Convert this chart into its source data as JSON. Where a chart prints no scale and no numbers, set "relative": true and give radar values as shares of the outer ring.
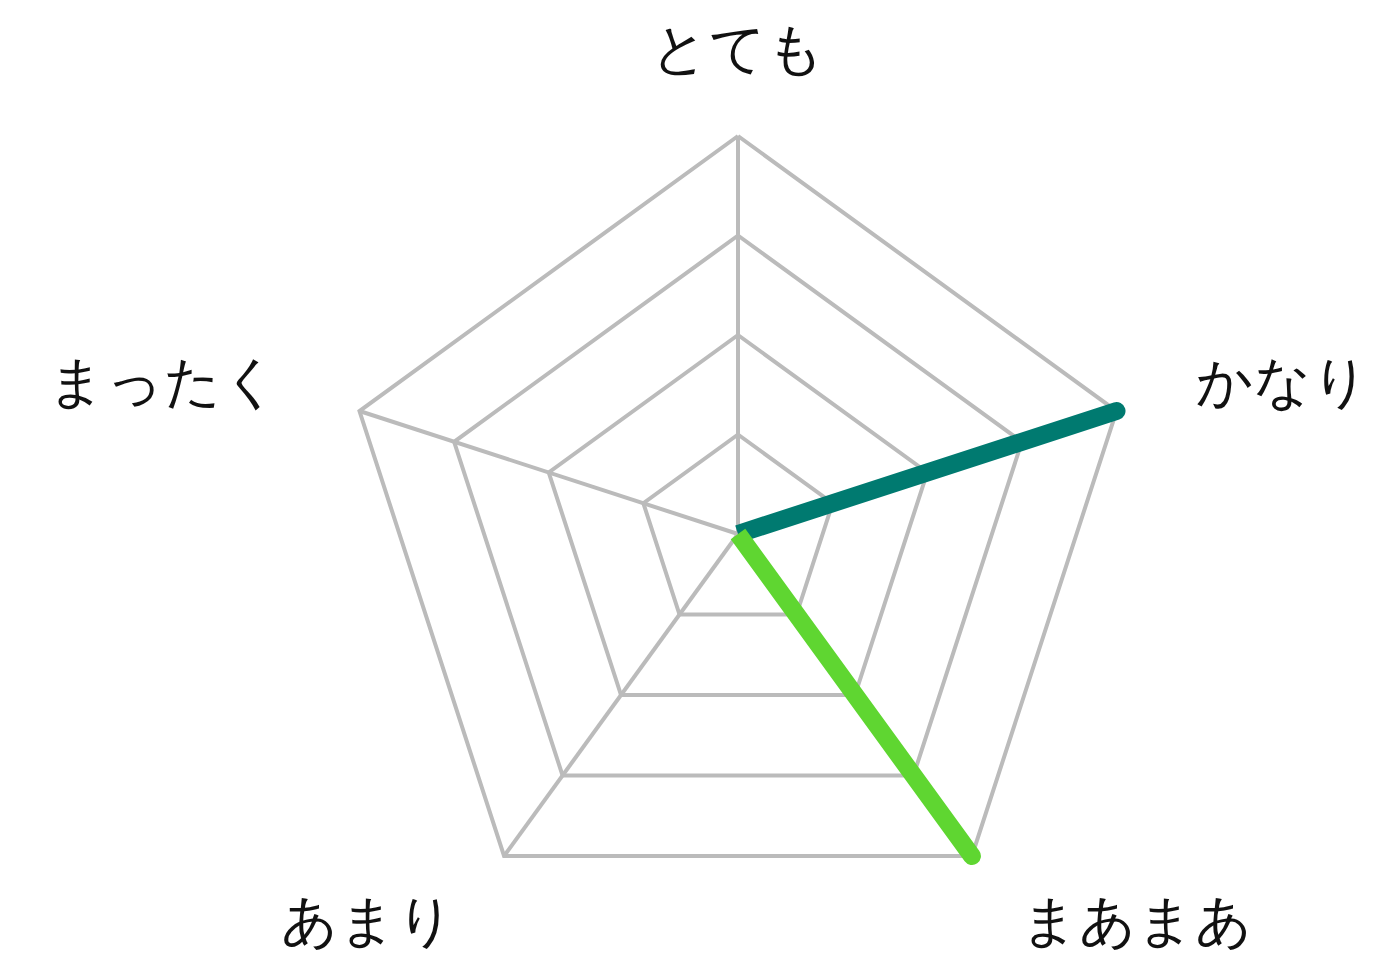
{
  "chart_data": {
    "type": "radar",
    "relative": true,
    "grid": true,
    "categories": [
      "とても",
      "かなり",
      "まあまあ",
      "あまり",
      "まったく"
    ],
    "series": [
      {
        "color": "#007a70",
        "values": [
          0,
          1,
          0,
          0,
          0
        ]
      },
      {
        "color": "#5fd631",
        "values": [
          0,
          0,
          1,
          0,
          0
        ]
      }
    ]
  }
}
